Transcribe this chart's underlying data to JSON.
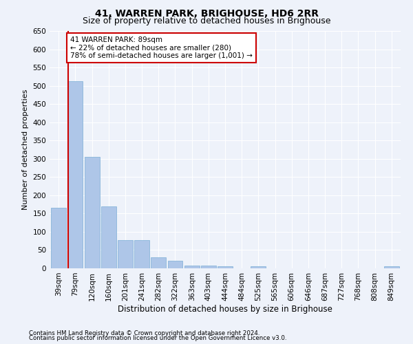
{
  "title": "41, WARREN PARK, BRIGHOUSE, HD6 2RR",
  "subtitle": "Size of property relative to detached houses in Brighouse",
  "xlabel": "Distribution of detached houses by size in Brighouse",
  "ylabel": "Number of detached properties",
  "categories": [
    "39sqm",
    "79sqm",
    "120sqm",
    "160sqm",
    "201sqm",
    "241sqm",
    "282sqm",
    "322sqm",
    "363sqm",
    "403sqm",
    "444sqm",
    "484sqm",
    "525sqm",
    "565sqm",
    "606sqm",
    "646sqm",
    "687sqm",
    "727sqm",
    "768sqm",
    "808sqm",
    "849sqm"
  ],
  "values": [
    165,
    513,
    305,
    170,
    77,
    77,
    30,
    20,
    8,
    8,
    5,
    0,
    5,
    0,
    0,
    0,
    0,
    0,
    0,
    0,
    5
  ],
  "bar_color": "#aec6e8",
  "bar_edge_color": "#7aaed6",
  "vline_x_index": 1,
  "vline_color": "#cc0000",
  "annotation_text": "41 WARREN PARK: 89sqm\n← 22% of detached houses are smaller (280)\n78% of semi-detached houses are larger (1,001) →",
  "annotation_box_color": "#ffffff",
  "annotation_box_edge": "#cc0000",
  "ylim": [
    0,
    650
  ],
  "yticks": [
    0,
    50,
    100,
    150,
    200,
    250,
    300,
    350,
    400,
    450,
    500,
    550,
    600,
    650
  ],
  "footer_line1": "Contains HM Land Registry data © Crown copyright and database right 2024.",
  "footer_line2": "Contains public sector information licensed under the Open Government Licence v3.0.",
  "background_color": "#eef2fa",
  "grid_color": "#ffffff",
  "title_fontsize": 10,
  "subtitle_fontsize": 9,
  "tick_fontsize": 7.5,
  "ylabel_fontsize": 8,
  "xlabel_fontsize": 8.5
}
